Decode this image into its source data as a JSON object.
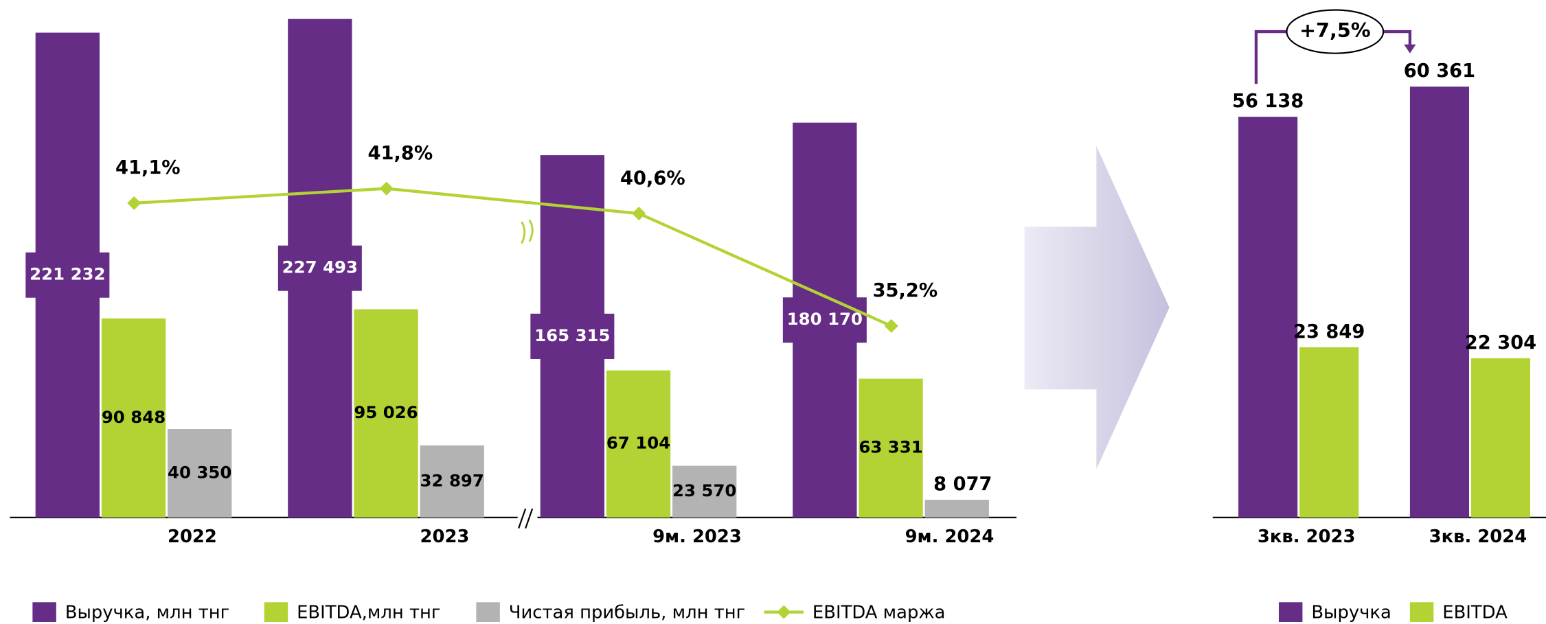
{
  "chart_data": [
    {
      "type": "bar",
      "categories": [
        "2022",
        "2023",
        "9м. 2023",
        "9м. 2024"
      ],
      "ylim": [
        0,
        228000
      ],
      "y2lim": [
        26,
        50
      ],
      "series": [
        {
          "name": "Выручка, млн тнг",
          "color": "#652d86",
          "values": [
            221232,
            227493,
            165315,
            180170
          ],
          "value_labels": [
            "221 232",
            "227 493",
            "165 315",
            "180 170"
          ]
        },
        {
          "name": "EBITDA,млн тнг",
          "color": "#b3d335",
          "values": [
            90848,
            95026,
            67104,
            63331
          ],
          "value_labels": [
            "90 848",
            "95 026",
            "67 104",
            "63 331"
          ]
        },
        {
          "name": "Чистая прибыль, млн тнг",
          "color": "#b3b3b3",
          "values": [
            40350,
            32897,
            23570,
            8077
          ],
          "value_labels": [
            "40 350",
            "32 897",
            "23 570",
            "8 077"
          ]
        },
        {
          "name": "EBITDA маржа",
          "color": "#b3d335",
          "type": "line",
          "axis": "y2",
          "values": [
            41.1,
            41.8,
            40.6,
            35.2
          ],
          "value_labels": [
            "41,1%",
            "41,8%",
            "40,6%",
            "35,2%"
          ]
        }
      ]
    },
    {
      "type": "bar",
      "categories": [
        "3кв. 2023",
        "3кв. 2024"
      ],
      "ylim": [
        0,
        70000
      ],
      "annotation": "+7,5%",
      "series": [
        {
          "name": "Выручка",
          "color": "#652d86",
          "values": [
            56138,
            60361
          ],
          "value_labels": [
            "56 138",
            "60 361"
          ]
        },
        {
          "name": "EBITDA",
          "color": "#b3d335",
          "values": [
            23849,
            22304
          ],
          "value_labels": [
            "23 849",
            "22 304"
          ]
        }
      ]
    }
  ]
}
